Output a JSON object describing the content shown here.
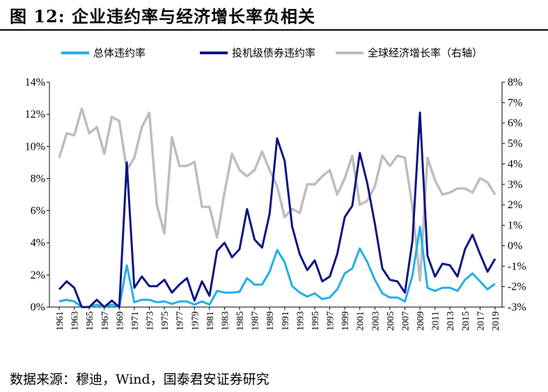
{
  "title": "图 12:  企业违约率与经济增长率负相关",
  "source": "数据来源：穆迪，Wind，国泰君安证券研究",
  "colors": {
    "total": "#1fb0e8",
    "spec": "#0a1482",
    "gdp": "#bdbdbd"
  },
  "chart_data": {
    "type": "line",
    "x": [
      1961,
      1962,
      1963,
      1964,
      1965,
      1966,
      1967,
      1968,
      1969,
      1970,
      1971,
      1972,
      1973,
      1974,
      1975,
      1976,
      1977,
      1978,
      1979,
      1980,
      1981,
      1982,
      1983,
      1984,
      1985,
      1986,
      1987,
      1988,
      1989,
      1990,
      1991,
      1992,
      1993,
      1994,
      1995,
      1996,
      1997,
      1998,
      1999,
      2000,
      2001,
      2002,
      2003,
      2004,
      2005,
      2006,
      2007,
      2008,
      2009,
      2010,
      2011,
      2012,
      2013,
      2014,
      2015,
      2016,
      2017,
      2018,
      2019
    ],
    "xticks": [
      "1961",
      "1963",
      "1965",
      "1967",
      "1969",
      "1971",
      "1973",
      "1975",
      "1977",
      "1979",
      "1981",
      "1983",
      "1985",
      "1987",
      "1989",
      "1991",
      "1993",
      "1995",
      "1997",
      "1999",
      "2001",
      "2003",
      "2005",
      "2007",
      "2009",
      "2011",
      "2013",
      "2015",
      "2017",
      "2019"
    ],
    "yticks_left": [
      "0%",
      "2%",
      "4%",
      "6%",
      "8%",
      "10%",
      "12%",
      "14%"
    ],
    "yticks_right": [
      "-3%",
      "-2%",
      "-1%",
      "0%",
      "1%",
      "2%",
      "3%",
      "4%",
      "5%",
      "6%",
      "7%",
      "8%"
    ],
    "ylim_left": [
      0,
      14
    ],
    "ylim_right": [
      -3,
      8
    ],
    "legend_position": "top",
    "series": [
      {
        "name": "总体违约率",
        "axis": "left",
        "values": [
          0.35,
          0.45,
          0.35,
          0.0,
          0.0,
          0.15,
          0.0,
          0.15,
          0.0,
          2.6,
          0.3,
          0.45,
          0.45,
          0.3,
          0.35,
          0.2,
          0.35,
          0.35,
          0.15,
          0.35,
          0.15,
          1.0,
          0.9,
          0.9,
          0.95,
          1.8,
          1.4,
          1.4,
          2.2,
          3.55,
          2.8,
          1.3,
          0.9,
          0.65,
          0.85,
          0.5,
          0.6,
          1.1,
          2.1,
          2.4,
          3.65,
          2.8,
          1.7,
          0.85,
          0.6,
          0.6,
          0.35,
          1.95,
          5.0,
          1.2,
          1.0,
          1.2,
          1.2,
          1.0,
          1.7,
          2.1,
          1.6,
          1.1,
          1.45
        ]
      },
      {
        "name": "投机级债券违约率",
        "axis": "left",
        "values": [
          1.1,
          1.6,
          1.2,
          0.0,
          0.0,
          0.45,
          0.0,
          0.4,
          0.0,
          9.0,
          1.2,
          1.9,
          1.3,
          1.3,
          1.7,
          0.9,
          1.4,
          1.8,
          0.4,
          1.6,
          0.7,
          3.5,
          4.0,
          3.1,
          3.6,
          6.1,
          4.2,
          3.7,
          5.8,
          10.5,
          9.1,
          5.0,
          3.3,
          2.3,
          2.9,
          1.6,
          1.9,
          3.3,
          5.6,
          6.3,
          9.6,
          7.7,
          5.2,
          2.4,
          1.7,
          1.6,
          0.9,
          4.1,
          12.1,
          3.2,
          1.9,
          2.7,
          2.6,
          1.9,
          3.6,
          4.5,
          3.3,
          2.2,
          3.0
        ]
      },
      {
        "name": "全球经济增长率（右轴）",
        "axis": "right",
        "values": [
          4.3,
          5.5,
          5.4,
          6.7,
          5.5,
          5.8,
          4.5,
          6.3,
          6.1,
          3.7,
          4.3,
          5.8,
          6.5,
          2.0,
          0.6,
          5.3,
          3.9,
          3.9,
          4.1,
          1.9,
          1.9,
          0.4,
          2.6,
          4.5,
          3.7,
          3.4,
          3.7,
          4.6,
          3.7,
          2.9,
          1.4,
          1.8,
          1.6,
          3.0,
          3.0,
          3.4,
          3.7,
          2.5,
          3.3,
          4.4,
          2.0,
          2.2,
          2.9,
          4.4,
          3.9,
          4.4,
          4.3,
          1.9,
          -1.7,
          4.3,
          3.2,
          2.5,
          2.6,
          2.8,
          2.8,
          2.6,
          3.3,
          3.1,
          2.5
        ]
      }
    ]
  }
}
